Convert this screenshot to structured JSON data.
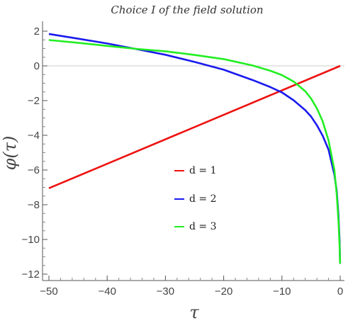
{
  "chart_data": {
    "type": "line",
    "title": "Choice I of the field solution",
    "xlabel": "τ",
    "ylabel": "φ(τ)",
    "xlim": [
      -50,
      0
    ],
    "ylim": [
      -12,
      2.5
    ],
    "x_ticks": [
      -50,
      -40,
      -30,
      -20,
      -10,
      0
    ],
    "x_tick_labels": [
      "−50",
      "−40",
      "−30",
      "−20",
      "−10",
      "0"
    ],
    "y_ticks": [
      2,
      0,
      -2,
      -4,
      -6,
      -8,
      -10,
      -12
    ],
    "y_tick_labels": [
      "2",
      "0",
      "−2",
      "−4",
      "−6",
      "−8",
      "−10",
      "−12"
    ],
    "grid": false,
    "zero_line": true,
    "legend_position": "center",
    "series": [
      {
        "name": "d = 1",
        "color": "#ee1111",
        "x": [
          -50,
          0
        ],
        "y": [
          -7.05,
          0
        ]
      },
      {
        "name": "d = 2",
        "color": "#1a1aee",
        "x": [
          -50,
          -45,
          -40,
          -35,
          -30,
          -25,
          -20,
          -15,
          -12,
          -10,
          -8,
          -6,
          -5,
          -4,
          -3,
          -2,
          -1,
          -0.6,
          -0.3,
          -0.1,
          -0.02
        ],
        "y": [
          1.84,
          1.57,
          1.29,
          0.97,
          0.64,
          0.23,
          -0.22,
          -0.82,
          -1.22,
          -1.53,
          -1.98,
          -2.55,
          -2.92,
          -3.42,
          -4.03,
          -4.83,
          -6.27,
          -7.2,
          -8.6,
          -10.1,
          -11.4
        ]
      },
      {
        "name": "d = 3",
        "color": "#22ee22",
        "x": [
          -50,
          -45,
          -40,
          -35,
          -30,
          -25,
          -20,
          -15,
          -12,
          -10,
          -8,
          -6,
          -5,
          -4,
          -3,
          -2,
          -1,
          -0.6,
          -0.3,
          -0.1,
          -0.02
        ],
        "y": [
          1.49,
          1.33,
          1.15,
          0.98,
          0.84,
          0.63,
          0.39,
          0.02,
          -0.28,
          -0.53,
          -0.9,
          -1.46,
          -1.88,
          -2.45,
          -3.2,
          -4.3,
          -6.0,
          -7.4,
          -8.9,
          -10.4,
          -11.4
        ]
      }
    ]
  }
}
